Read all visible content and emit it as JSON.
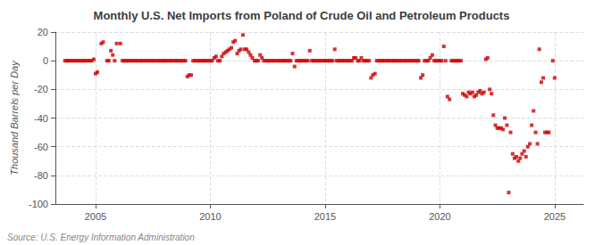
{
  "chart_data": {
    "type": "scatter",
    "title": "Monthly U.S. Net Imports from Poland of Crude Oil and Petroleum Products",
    "ylabel": "Thousand Barrels per Day",
    "annotation": "Source: U.S. Energy Information Administration",
    "color": "#cc0000",
    "marker": "square",
    "grid": true,
    "xlim": [
      2003.25,
      2026.25
    ],
    "ylim": [
      -100,
      20
    ],
    "xticks": [
      2005,
      2010,
      2015,
      2020,
      2025
    ],
    "yticks": [
      20,
      0,
      -20,
      -40,
      -60,
      -80,
      -100
    ],
    "x": [
      2003.67,
      2003.75,
      2003.83,
      2003.92,
      2004.0,
      2004.08,
      2004.17,
      2004.25,
      2004.33,
      2004.42,
      2004.5,
      2004.58,
      2004.67,
      2004.75,
      2004.83,
      2004.92,
      2005.0,
      2005.08,
      2005.25,
      2005.33,
      2005.5,
      2005.58,
      2005.67,
      2005.75,
      2005.83,
      2005.92,
      2006.08,
      2006.17,
      2006.25,
      2006.33,
      2006.42,
      2006.5,
      2006.58,
      2006.67,
      2006.75,
      2006.83,
      2006.92,
      2007.0,
      2007.08,
      2007.17,
      2007.25,
      2007.33,
      2007.42,
      2007.5,
      2007.58,
      2007.67,
      2007.75,
      2007.83,
      2007.92,
      2008.0,
      2008.08,
      2008.17,
      2008.25,
      2008.33,
      2008.42,
      2008.5,
      2008.58,
      2008.67,
      2008.75,
      2008.83,
      2008.92,
      2009.0,
      2009.08,
      2009.17,
      2009.25,
      2009.33,
      2009.42,
      2009.5,
      2009.58,
      2009.67,
      2009.75,
      2009.83,
      2009.92,
      2010.0,
      2010.08,
      2010.17,
      2010.25,
      2010.33,
      2010.42,
      2010.5,
      2010.58,
      2010.67,
      2010.75,
      2010.83,
      2010.92,
      2011.0,
      2011.08,
      2011.17,
      2011.25,
      2011.33,
      2011.42,
      2011.5,
      2011.58,
      2011.67,
      2011.75,
      2011.83,
      2011.92,
      2012.0,
      2012.08,
      2012.17,
      2012.25,
      2012.33,
      2012.42,
      2012.5,
      2012.58,
      2012.67,
      2012.75,
      2012.83,
      2012.92,
      2013.0,
      2013.08,
      2013.17,
      2013.25,
      2013.33,
      2013.42,
      2013.5,
      2013.58,
      2013.67,
      2013.75,
      2013.83,
      2013.92,
      2014.0,
      2014.08,
      2014.17,
      2014.25,
      2014.33,
      2014.42,
      2014.5,
      2014.58,
      2014.67,
      2014.75,
      2014.83,
      2014.92,
      2015.0,
      2015.08,
      2015.17,
      2015.25,
      2015.33,
      2015.42,
      2015.5,
      2015.58,
      2015.67,
      2015.75,
      2015.83,
      2015.92,
      2016.0,
      2016.08,
      2016.17,
      2016.25,
      2016.33,
      2016.42,
      2016.5,
      2016.58,
      2016.67,
      2016.75,
      2016.83,
      2016.92,
      2017.0,
      2017.08,
      2017.17,
      2017.25,
      2017.33,
      2017.42,
      2017.5,
      2017.58,
      2017.67,
      2017.75,
      2017.83,
      2017.92,
      2018.0,
      2018.08,
      2018.17,
      2018.25,
      2018.33,
      2018.42,
      2018.5,
      2018.58,
      2018.67,
      2018.75,
      2018.83,
      2018.92,
      2019.0,
      2019.08,
      2019.17,
      2019.25,
      2019.33,
      2019.42,
      2019.5,
      2019.58,
      2019.67,
      2019.75,
      2019.83,
      2019.92,
      2020.0,
      2020.08,
      2020.17,
      2020.25,
      2020.33,
      2020.42,
      2020.5,
      2020.58,
      2020.67,
      2020.75,
      2020.83,
      2020.92,
      2021.0,
      2021.08,
      2021.17,
      2021.25,
      2021.33,
      2021.42,
      2021.5,
      2021.58,
      2021.67,
      2021.75,
      2021.83,
      2021.92,
      2022.0,
      2022.08,
      2022.17,
      2022.25,
      2022.33,
      2022.42,
      2022.5,
      2022.58,
      2022.67,
      2022.75,
      2022.83,
      2022.92,
      2023.0,
      2023.08,
      2023.17,
      2023.25,
      2023.33,
      2023.42,
      2023.5,
      2023.58,
      2023.67,
      2023.75,
      2023.83,
      2023.92,
      2024.0,
      2024.08,
      2024.17,
      2024.25,
      2024.33,
      2024.42,
      2024.5,
      2024.58,
      2024.67,
      2024.75,
      2024.92,
      2025.0
    ],
    "values": [
      0,
      0,
      0,
      0,
      0,
      0,
      0,
      0,
      0,
      0,
      0,
      0,
      0,
      0,
      0,
      1,
      -9,
      -8,
      12,
      13,
      0,
      0,
      7,
      4,
      0,
      12,
      12,
      0,
      0,
      0,
      0,
      0,
      0,
      0,
      0,
      0,
      0,
      0,
      0,
      0,
      0,
      0,
      0,
      0,
      0,
      0,
      0,
      0,
      0,
      0,
      0,
      0,
      0,
      0,
      0,
      0,
      0,
      0,
      0,
      0,
      0,
      -11,
      -10,
      -10,
      0,
      0,
      0,
      0,
      0,
      0,
      0,
      0,
      0,
      0,
      0,
      2,
      3,
      0,
      0,
      3,
      5,
      6,
      7,
      8,
      9,
      13,
      14,
      5,
      7,
      8,
      18,
      8,
      8,
      6,
      4,
      2,
      0,
      0,
      0,
      4,
      2,
      0,
      0,
      0,
      0,
      0,
      0,
      0,
      0,
      0,
      0,
      0,
      0,
      0,
      0,
      0,
      5,
      -4,
      0,
      0,
      0,
      0,
      0,
      0,
      0,
      7,
      0,
      0,
      0,
      0,
      0,
      0,
      0,
      0,
      0,
      0,
      0,
      0,
      8,
      0,
      0,
      0,
      0,
      0,
      0,
      0,
      0,
      0,
      2,
      2,
      0,
      0,
      2,
      0,
      0,
      0,
      0,
      -12,
      -10,
      -9,
      0,
      0,
      0,
      0,
      0,
      0,
      0,
      0,
      0,
      0,
      0,
      0,
      0,
      0,
      0,
      0,
      0,
      0,
      0,
      0,
      0,
      0,
      0,
      -12,
      -10,
      0,
      0,
      0,
      2,
      4,
      0,
      0,
      0,
      0,
      0,
      10,
      0,
      -25,
      -27,
      0,
      0,
      0,
      0,
      0,
      0,
      -23,
      -24,
      -25,
      -22,
      -23,
      -22,
      -25,
      -24,
      -22,
      -21,
      -23,
      -22,
      1,
      2,
      -20,
      -23,
      -38,
      -45,
      -47,
      -47,
      -47,
      -48,
      -40,
      -45,
      -92,
      -50,
      -65,
      -68,
      -67,
      -70,
      -68,
      -65,
      -63,
      -67,
      -60,
      -58,
      -45,
      -35,
      -50,
      -58,
      8,
      -15,
      -12,
      -50,
      -50,
      -50,
      0,
      -12
    ]
  }
}
